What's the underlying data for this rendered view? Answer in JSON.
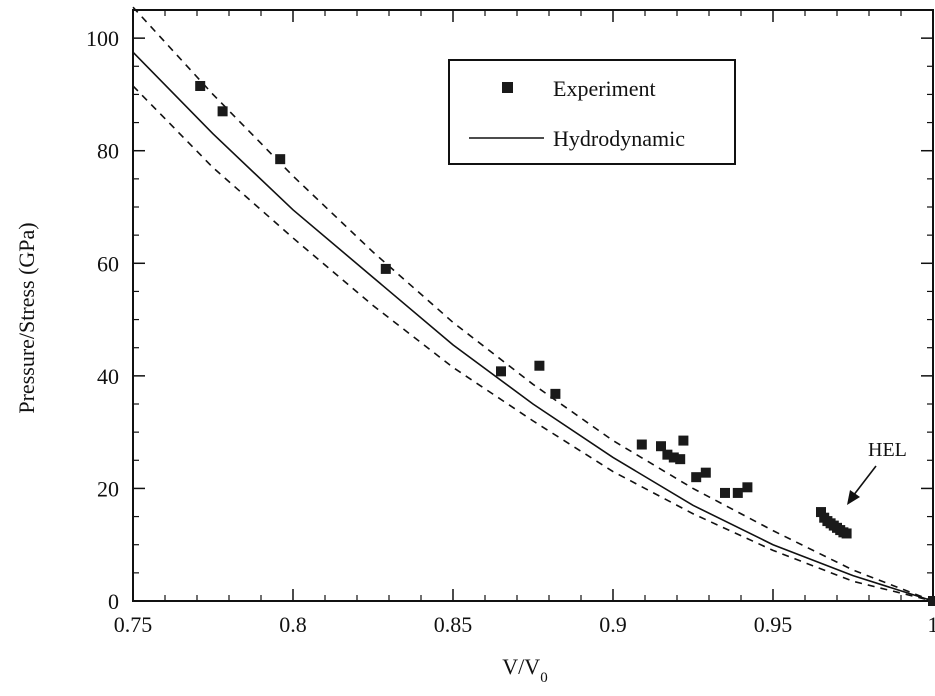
{
  "chart_data": {
    "type": "scatter",
    "title": "",
    "xlabel": "V/V",
    "xlabel_subscript": "0",
    "ylabel": "Pressure/Stress (GPa)",
    "xlim": [
      0.75,
      1.0
    ],
    "ylim": [
      0,
      105
    ],
    "x_ticks": [
      0.75,
      0.8,
      0.85,
      0.9,
      0.95,
      1.0
    ],
    "x_tick_labels": [
      "0.75",
      "0.8",
      "0.85",
      "0.9",
      "0.95",
      "1"
    ],
    "y_ticks": [
      0,
      20,
      40,
      60,
      80,
      100
    ],
    "y_tick_labels": [
      "0",
      "20",
      "40",
      "60",
      "80",
      "100"
    ],
    "grid": false,
    "legend_position": "top-center",
    "legend": [
      {
        "label": "Experiment",
        "marker": "square"
      },
      {
        "label": "Hydrodynamic",
        "marker": "line"
      }
    ],
    "annotation": {
      "text": "HEL",
      "points_to": [
        0.967,
        14.5
      ]
    },
    "series": [
      {
        "name": "Experiment",
        "kind": "points",
        "color": "#1a1a1a",
        "x": [
          0.771,
          0.778,
          0.796,
          0.829,
          0.865,
          0.877,
          0.882,
          0.909,
          0.915,
          0.922,
          0.917,
          0.919,
          0.921,
          0.926,
          0.929,
          0.935,
          0.939,
          0.942,
          0.965,
          0.966,
          0.967,
          0.968,
          0.969,
          0.97,
          0.971,
          0.972,
          0.973,
          1.0
        ],
        "y": [
          91.5,
          87,
          78.5,
          59,
          40.8,
          41.8,
          36.8,
          27.8,
          27.5,
          28.5,
          26,
          25.5,
          25.2,
          22,
          22.8,
          19.2,
          19.2,
          20.2,
          15.8,
          14.8,
          14.2,
          13.8,
          13.4,
          13.0,
          12.6,
          12.2,
          12.0,
          0
        ]
      },
      {
        "name": "Hydrodynamic",
        "kind": "line",
        "style": "solid",
        "color": "#111111",
        "x": [
          0.75,
          0.775,
          0.8,
          0.825,
          0.85,
          0.875,
          0.9,
          0.925,
          0.95,
          0.975,
          1.0
        ],
        "y": [
          97.5,
          83,
          69.5,
          57.5,
          45.5,
          35,
          25.5,
          17,
          10,
          4.5,
          0
        ]
      },
      {
        "name": "",
        "kind": "line",
        "style": "dashed",
        "color": "#111111",
        "x": [
          0.75,
          0.775,
          0.8,
          0.825,
          0.85,
          0.875,
          0.9,
          0.925,
          0.95,
          0.975,
          1.0
        ],
        "y": [
          105.5,
          90,
          75.5,
          62,
          49.5,
          38.5,
          28.5,
          20,
          12.5,
          5.5,
          0
        ]
      },
      {
        "name": "",
        "kind": "line",
        "style": "dashed",
        "color": "#111111",
        "x": [
          0.75,
          0.775,
          0.8,
          0.825,
          0.85,
          0.875,
          0.9,
          0.925,
          0.95,
          0.975,
          1.0
        ],
        "y": [
          91.5,
          77,
          64.5,
          52.5,
          41.5,
          32,
          23,
          15.5,
          9,
          3.5,
          0
        ]
      }
    ]
  }
}
